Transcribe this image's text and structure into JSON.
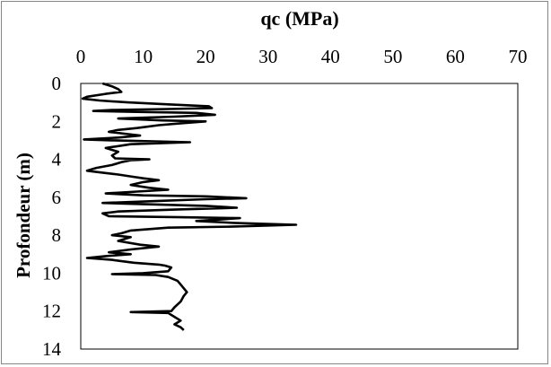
{
  "chart_data": {
    "type": "line",
    "title": "qc (MPa)",
    "xlabel": "qc (MPa)",
    "ylabel": "Profondeur (m)",
    "xlim": [
      0,
      70
    ],
    "ylim": [
      0,
      14
    ],
    "x_ticks": [
      "0",
      "10",
      "20",
      "30",
      "40",
      "50",
      "60",
      "70"
    ],
    "y_ticks": [
      "0",
      "2",
      "4",
      "6",
      "8",
      "10",
      "12",
      "14"
    ],
    "x_axis_position": "top",
    "y_axis_inverted": true,
    "grid": false,
    "legend": "none",
    "line_color": "#000000",
    "series": [
      {
        "points": [
          [
            3.5,
            0.0
          ],
          [
            5.0,
            0.15
          ],
          [
            6.0,
            0.3
          ],
          [
            6.5,
            0.45
          ],
          [
            4.0,
            0.55
          ],
          [
            1.0,
            0.7
          ],
          [
            0.3,
            0.8
          ],
          [
            3.0,
            0.9
          ],
          [
            7.5,
            1.0
          ],
          [
            14.0,
            1.1
          ],
          [
            20.5,
            1.2
          ],
          [
            21.0,
            1.3
          ],
          [
            14.0,
            1.35
          ],
          [
            5.0,
            1.4
          ],
          [
            2.0,
            1.45
          ],
          [
            9.0,
            1.5
          ],
          [
            18.5,
            1.55
          ],
          [
            21.5,
            1.65
          ],
          [
            15.0,
            1.75
          ],
          [
            6.0,
            1.85
          ],
          [
            13.0,
            1.95
          ],
          [
            20.0,
            2.0
          ],
          [
            16.0,
            2.1
          ],
          [
            12.5,
            2.2
          ],
          [
            9.0,
            2.35
          ],
          [
            6.0,
            2.45
          ],
          [
            4.5,
            2.55
          ],
          [
            7.0,
            2.65
          ],
          [
            9.5,
            2.75
          ],
          [
            6.0,
            2.85
          ],
          [
            0.5,
            2.95
          ],
          [
            5.0,
            3.0
          ],
          [
            17.5,
            3.1
          ],
          [
            8.0,
            3.2
          ],
          [
            4.0,
            3.4
          ],
          [
            6.0,
            3.6
          ],
          [
            5.0,
            3.8
          ],
          [
            5.5,
            3.95
          ],
          [
            11.0,
            4.0
          ],
          [
            8.0,
            4.05
          ],
          [
            6.5,
            4.15
          ],
          [
            5.0,
            4.3
          ],
          [
            2.5,
            4.45
          ],
          [
            1.0,
            4.6
          ],
          [
            3.5,
            4.7
          ],
          [
            6.0,
            4.8
          ],
          [
            8.0,
            4.9
          ],
          [
            10.0,
            5.0
          ],
          [
            12.5,
            5.1
          ],
          [
            10.0,
            5.2
          ],
          [
            8.0,
            5.35
          ],
          [
            11.0,
            5.5
          ],
          [
            14.0,
            5.6
          ],
          [
            9.0,
            5.7
          ],
          [
            4.0,
            5.8
          ],
          [
            10.0,
            5.9
          ],
          [
            20.0,
            5.95
          ],
          [
            26.5,
            6.05
          ],
          [
            20.0,
            6.1
          ],
          [
            12.0,
            6.2
          ],
          [
            3.5,
            6.3
          ],
          [
            9.0,
            6.35
          ],
          [
            20.0,
            6.45
          ],
          [
            25.0,
            6.55
          ],
          [
            15.0,
            6.65
          ],
          [
            6.0,
            6.75
          ],
          [
            3.5,
            6.85
          ],
          [
            4.5,
            7.0
          ],
          [
            16.0,
            7.05
          ],
          [
            25.5,
            7.1
          ],
          [
            18.5,
            7.25
          ],
          [
            24.5,
            7.35
          ],
          [
            34.5,
            7.45
          ],
          [
            24.0,
            7.55
          ],
          [
            14.0,
            7.6
          ],
          [
            8.0,
            7.75
          ],
          [
            6.5,
            7.9
          ],
          [
            5.0,
            8.0
          ],
          [
            8.0,
            8.1
          ],
          [
            6.0,
            8.3
          ],
          [
            9.5,
            8.5
          ],
          [
            12.5,
            8.6
          ],
          [
            8.0,
            8.75
          ],
          [
            4.5,
            8.9
          ],
          [
            8.0,
            9.0
          ],
          [
            4.0,
            9.1
          ],
          [
            1.0,
            9.2
          ],
          [
            5.0,
            9.3
          ],
          [
            8.5,
            9.45
          ],
          [
            12.5,
            9.55
          ],
          [
            13.5,
            9.6
          ],
          [
            14.5,
            9.7
          ],
          [
            14.0,
            9.9
          ],
          [
            10.0,
            10.0
          ],
          [
            5.0,
            10.05
          ],
          [
            12.0,
            10.1
          ],
          [
            14.0,
            10.2
          ],
          [
            15.5,
            10.4
          ],
          [
            16.0,
            10.6
          ],
          [
            16.5,
            10.8
          ],
          [
            17.0,
            11.0
          ],
          [
            16.5,
            11.2
          ],
          [
            16.0,
            11.5
          ],
          [
            15.0,
            11.8
          ],
          [
            14.5,
            12.0
          ],
          [
            8.0,
            12.05
          ],
          [
            14.0,
            12.1
          ],
          [
            15.0,
            12.3
          ],
          [
            16.0,
            12.5
          ],
          [
            15.0,
            12.7
          ],
          [
            16.0,
            12.85
          ],
          [
            16.5,
            13.0
          ]
        ]
      }
    ]
  }
}
